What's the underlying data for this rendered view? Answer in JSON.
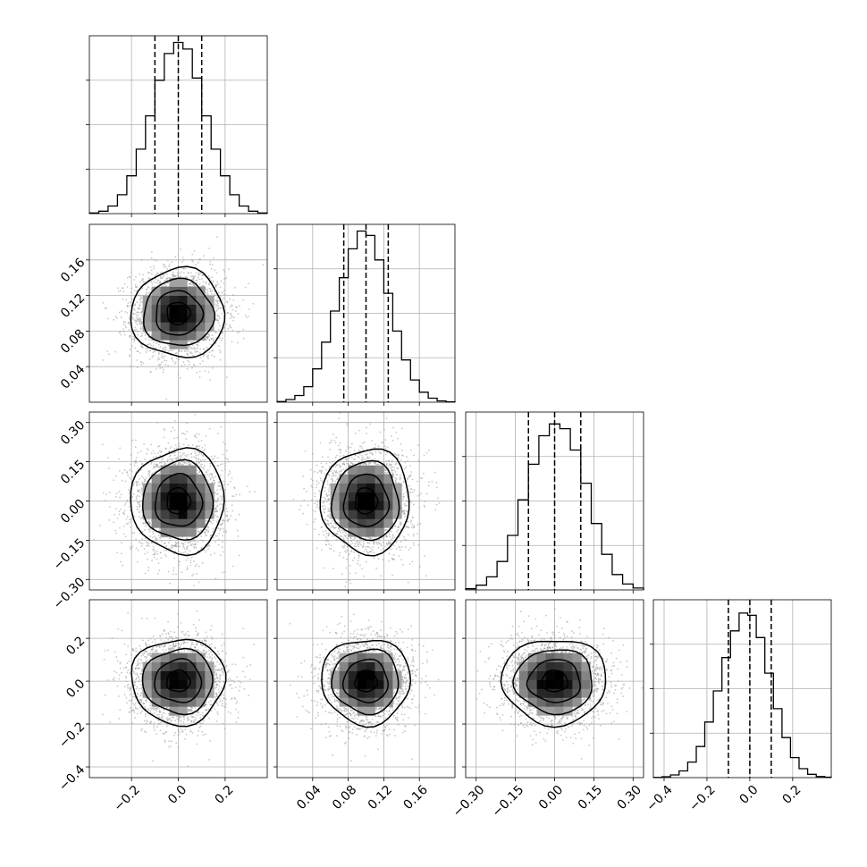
{
  "chart_data": {
    "type": "corner",
    "grid": true,
    "parameters": [
      {
        "range": [
          -0.38,
          0.38
        ],
        "ticks": [
          -0.2,
          0.0,
          0.2
        ],
        "tick_labels": [
          "−0.2",
          "0.0",
          "0.2"
        ],
        "center": 0.0,
        "sigma": 0.1,
        "quantiles": [
          -0.1,
          0.0,
          0.1
        ]
      },
      {
        "range": [
          0.0,
          0.2
        ],
        "ticks": [
          0.04,
          0.08,
          0.12,
          0.16
        ],
        "tick_labels": [
          "0.04",
          "0.08",
          "0.12",
          "0.16"
        ],
        "center": 0.1,
        "sigma": 0.025,
        "quantiles": [
          0.075,
          0.1,
          0.125
        ]
      },
      {
        "range": [
          -0.34,
          0.34
        ],
        "ticks": [
          -0.3,
          -0.15,
          0.0,
          0.15,
          0.3
        ],
        "tick_labels": [
          "−0.30",
          "−0.15",
          "0.00",
          "0.15",
          "0.30"
        ],
        "center": 0.0,
        "sigma": 0.1,
        "quantiles": [
          -0.1,
          0.0,
          0.1
        ]
      },
      {
        "range": [
          -0.45,
          0.38
        ],
        "ticks": [
          -0.4,
          -0.2,
          0.0,
          0.2
        ],
        "tick_labels": [
          "−0.4",
          "−0.2",
          "0.0",
          "0.2"
        ],
        "center": 0.0,
        "sigma": 0.1,
        "quantiles": [
          -0.1,
          0.0,
          0.1
        ]
      }
    ],
    "histograms": [
      {
        "param": 0,
        "bin_edges": [
          -0.38,
          -0.34,
          -0.3,
          -0.26,
          -0.22,
          -0.18,
          -0.14,
          -0.1,
          -0.06,
          -0.02,
          0.02,
          0.06,
          0.1,
          0.14,
          0.18,
          0.22,
          0.26,
          0.3,
          0.34,
          0.38
        ],
        "counts": [
          0.003,
          0.011,
          0.034,
          0.085,
          0.17,
          0.29,
          0.44,
          0.6,
          0.72,
          0.77,
          0.74,
          0.61,
          0.44,
          0.29,
          0.17,
          0.085,
          0.034,
          0.011,
          0.003
        ],
        "ylim": [
          0,
          0.8
        ]
      },
      {
        "param": 1,
        "bin_edges": [
          0.0,
          0.01,
          0.02,
          0.03,
          0.04,
          0.05,
          0.06,
          0.07,
          0.08,
          0.09,
          0.1,
          0.11,
          0.12,
          0.13,
          0.14,
          0.15,
          0.16,
          0.17,
          0.18,
          0.19,
          0.2
        ],
        "counts": [
          0.003,
          0.012,
          0.03,
          0.07,
          0.15,
          0.27,
          0.41,
          0.56,
          0.69,
          0.77,
          0.75,
          0.64,
          0.49,
          0.32,
          0.19,
          0.1,
          0.045,
          0.018,
          0.006,
          0.002
        ],
        "ylim": [
          0,
          0.8
        ]
      },
      {
        "param": 2,
        "bin_edges": [
          -0.34,
          -0.3,
          -0.26,
          -0.22,
          -0.18,
          -0.14,
          -0.1,
          -0.06,
          -0.02,
          0.02,
          0.06,
          0.1,
          0.14,
          0.18,
          0.22,
          0.26,
          0.3,
          0.34
        ],
        "counts": [
          0.005,
          0.02,
          0.055,
          0.12,
          0.23,
          0.38,
          0.53,
          0.65,
          0.7,
          0.68,
          0.59,
          0.45,
          0.28,
          0.15,
          0.065,
          0.025,
          0.008
        ],
        "ylim": [
          0,
          0.75
        ]
      },
      {
        "param": 3,
        "bin_edges": [
          -0.45,
          -0.41,
          -0.37,
          -0.33,
          -0.29,
          -0.25,
          -0.21,
          -0.17,
          -0.13,
          -0.09,
          -0.05,
          -0.01,
          0.03,
          0.07,
          0.11,
          0.15,
          0.19,
          0.23,
          0.27,
          0.31,
          0.35,
          0.38
        ],
        "counts": [
          0.001,
          0.004,
          0.012,
          0.03,
          0.07,
          0.14,
          0.25,
          0.39,
          0.54,
          0.66,
          0.74,
          0.73,
          0.63,
          0.47,
          0.31,
          0.18,
          0.09,
          0.04,
          0.015,
          0.005,
          0.002
        ],
        "ylim": [
          0,
          0.8
        ]
      }
    ],
    "scatter_samples_per_panel": 2500,
    "contour_levels_sigma": [
      0.5,
      1.0,
      1.5,
      2.0
    ]
  }
}
